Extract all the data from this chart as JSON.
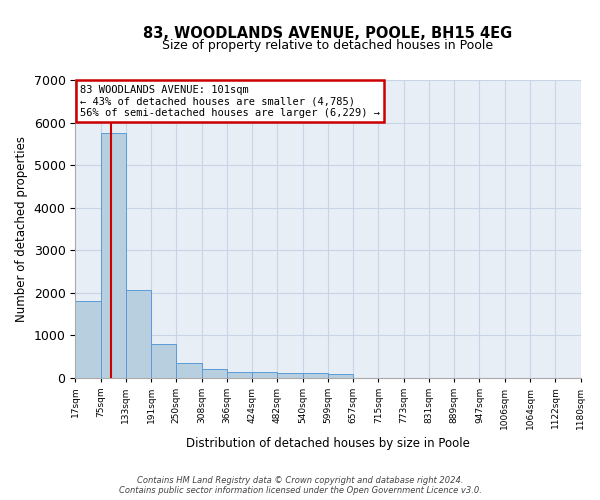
{
  "title1": "83, WOODLANDS AVENUE, POOLE, BH15 4EG",
  "title2": "Size of property relative to detached houses in Poole",
  "xlabel": "Distribution of detached houses by size in Poole",
  "ylabel": "Number of detached properties",
  "footer1": "Contains HM Land Registry data © Crown copyright and database right 2024.",
  "footer2": "Contains public sector information licensed under the Open Government Licence v3.0.",
  "annotation_line1": "83 WOODLANDS AVENUE: 101sqm",
  "annotation_line2": "← 43% of detached houses are smaller (4,785)",
  "annotation_line3": "56% of semi-detached houses are larger (6,229) →",
  "bin_labels": [
    "17sqm",
    "75sqm",
    "133sqm",
    "191sqm",
    "250sqm",
    "308sqm",
    "366sqm",
    "424sqm",
    "482sqm",
    "540sqm",
    "599sqm",
    "657sqm",
    "715sqm",
    "773sqm",
    "831sqm",
    "889sqm",
    "947sqm",
    "1006sqm",
    "1064sqm",
    "1122sqm",
    "1180sqm"
  ],
  "bar_values": [
    1800,
    5750,
    2050,
    800,
    350,
    200,
    130,
    120,
    110,
    100,
    80,
    0,
    0,
    0,
    0,
    0,
    0,
    0,
    0,
    0
  ],
  "bar_color": "#b8cfe0",
  "bar_edge_color": "#5b9bd5",
  "redline_x": 0.43,
  "ylim": [
    0,
    7000
  ],
  "yticks": [
    0,
    1000,
    2000,
    3000,
    4000,
    5000,
    6000,
    7000
  ],
  "grid_color": "#c8d4e8",
  "bg_color": "#e8eef5",
  "redline_color": "#cc0000",
  "n_bars": 20
}
